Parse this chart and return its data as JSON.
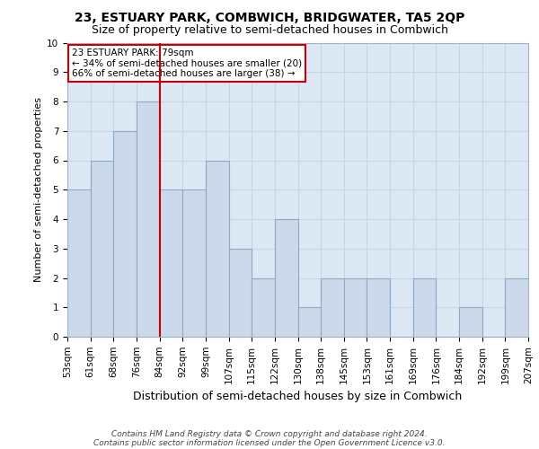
{
  "title": "23, ESTUARY PARK, COMBWICH, BRIDGWATER, TA5 2QP",
  "subtitle": "Size of property relative to semi-detached houses in Combwich",
  "xlabel": "Distribution of semi-detached houses by size in Combwich",
  "ylabel": "Number of semi-detached properties",
  "bin_labels": [
    "53sqm",
    "61sqm",
    "68sqm",
    "76sqm",
    "84sqm",
    "92sqm",
    "99sqm",
    "107sqm",
    "115sqm",
    "122sqm",
    "130sqm",
    "138sqm",
    "145sqm",
    "153sqm",
    "161sqm",
    "169sqm",
    "176sqm",
    "184sqm",
    "192sqm",
    "199sqm",
    "207sqm"
  ],
  "counts": [
    5,
    6,
    7,
    8,
    5,
    5,
    6,
    3,
    2,
    4,
    1,
    2,
    2,
    2,
    0,
    2,
    0,
    1,
    0,
    2
  ],
  "bar_color": "#ccd9ea",
  "bar_edge_color": "#8aaac8",
  "property_bin_index": 3,
  "property_label_line1": "23 ESTUARY PARK: 79sqm",
  "property_label_line2": "← 34% of semi-detached houses are smaller (20)",
  "property_label_line3": "66% of semi-detached houses are larger (38) →",
  "vline_color": "#cc0000",
  "annotation_box_edge_color": "#cc0000",
  "ylim": [
    0,
    10
  ],
  "yticks": [
    0,
    1,
    2,
    3,
    4,
    5,
    6,
    7,
    8,
    9,
    10
  ],
  "grid_color": "#c8d4e4",
  "background_color": "#dce8f4",
  "footer_line1": "Contains HM Land Registry data © Crown copyright and database right 2024.",
  "footer_line2": "Contains public sector information licensed under the Open Government Licence v3.0.",
  "title_fontsize": 10,
  "subtitle_fontsize": 9,
  "ylabel_fontsize": 8,
  "xlabel_fontsize": 9,
  "tick_fontsize": 7.5,
  "annot_fontsize": 7.5,
  "footer_fontsize": 6.5
}
